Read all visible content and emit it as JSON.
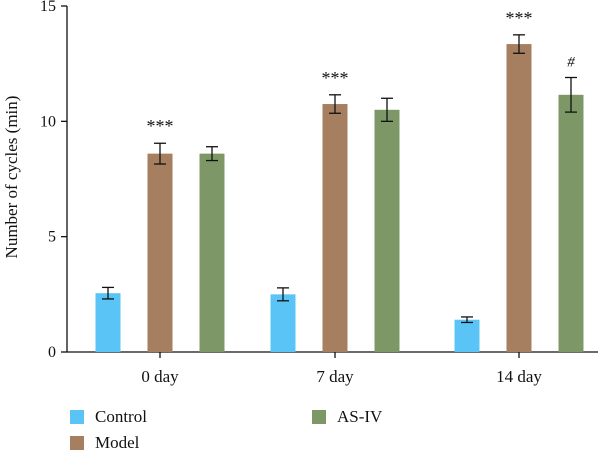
{
  "chart_data": {
    "type": "bar",
    "categories": [
      "0 day",
      "7 day",
      "14 day"
    ],
    "ylabel": "Number of cycles (min)",
    "xlabel": "",
    "ylim": [
      0,
      15
    ],
    "yticks": [
      0,
      5,
      10,
      15
    ],
    "grid": false,
    "legend_position": "bottom",
    "series": [
      {
        "name": "Control",
        "color": "#5bc4f7",
        "values": [
          2.55,
          2.5,
          1.4
        ],
        "errors": [
          0.25,
          0.28,
          0.12
        ]
      },
      {
        "name": "Model",
        "color": "#a67f61",
        "values": [
          8.6,
          10.75,
          13.35
        ],
        "errors": [
          0.45,
          0.4,
          0.4
        ]
      },
      {
        "name": "AS-IV",
        "color": "#7d9866",
        "values": [
          8.6,
          10.5,
          11.15
        ],
        "errors": [
          0.3,
          0.5,
          0.75
        ]
      }
    ],
    "annotations": [
      {
        "category": "0 day",
        "series": "Model",
        "text": "***"
      },
      {
        "category": "7 day",
        "series": "Model",
        "text": "***"
      },
      {
        "category": "14 day",
        "series": "Model",
        "text": "***"
      },
      {
        "category": "14 day",
        "series": "AS-IV",
        "text": "#"
      }
    ]
  }
}
